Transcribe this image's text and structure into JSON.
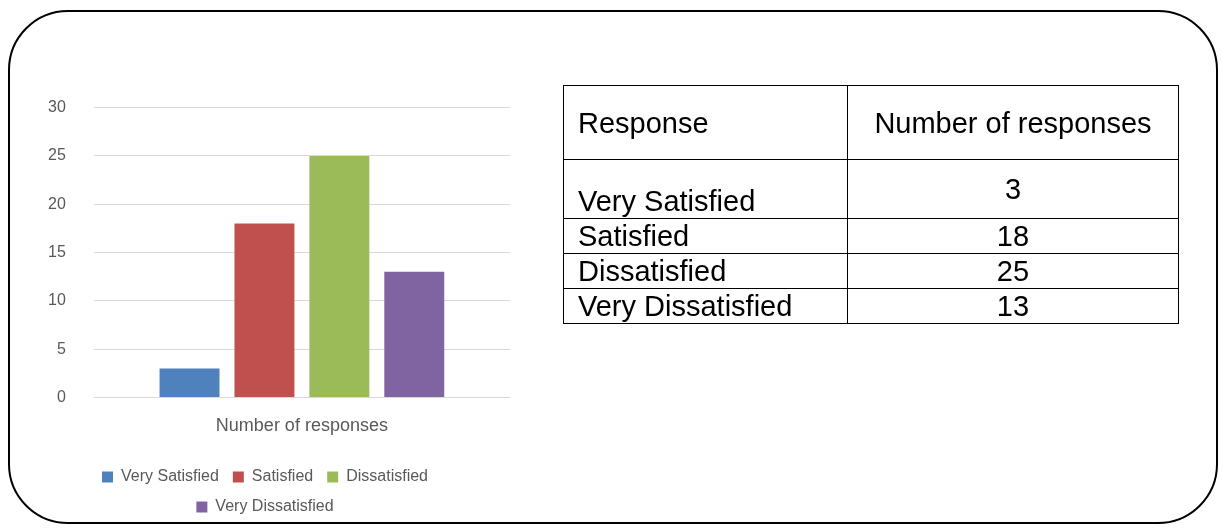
{
  "chart_data": [
    {
      "type": "bar",
      "categories": [
        "Number of responses"
      ],
      "series": [
        {
          "name": "Very Satisfied",
          "color": "#4f81bd",
          "values": [
            3
          ]
        },
        {
          "name": "Satisfied",
          "color": "#c0504d",
          "values": [
            18
          ]
        },
        {
          "name": "Dissatisfied",
          "color": "#9bbb59",
          "values": [
            25
          ]
        },
        {
          "name": "Very Dissatisfied",
          "color": "#8064a2",
          "values": [
            13
          ]
        }
      ],
      "ylim": [
        0,
        30
      ],
      "yticks": [
        0,
        5,
        10,
        15,
        20,
        25,
        30
      ],
      "grid": "y",
      "legend": "bottom"
    },
    {
      "type": "other",
      "categories": [
        "Very Satisfied",
        "Satisfied",
        "Dissatisfied",
        "Very Dissatisfied"
      ],
      "values": [
        3,
        18,
        25,
        13
      ],
      "data_labels": true,
      "annotations": [
        "Response",
        "Number of responses"
      ]
    }
  ]
}
